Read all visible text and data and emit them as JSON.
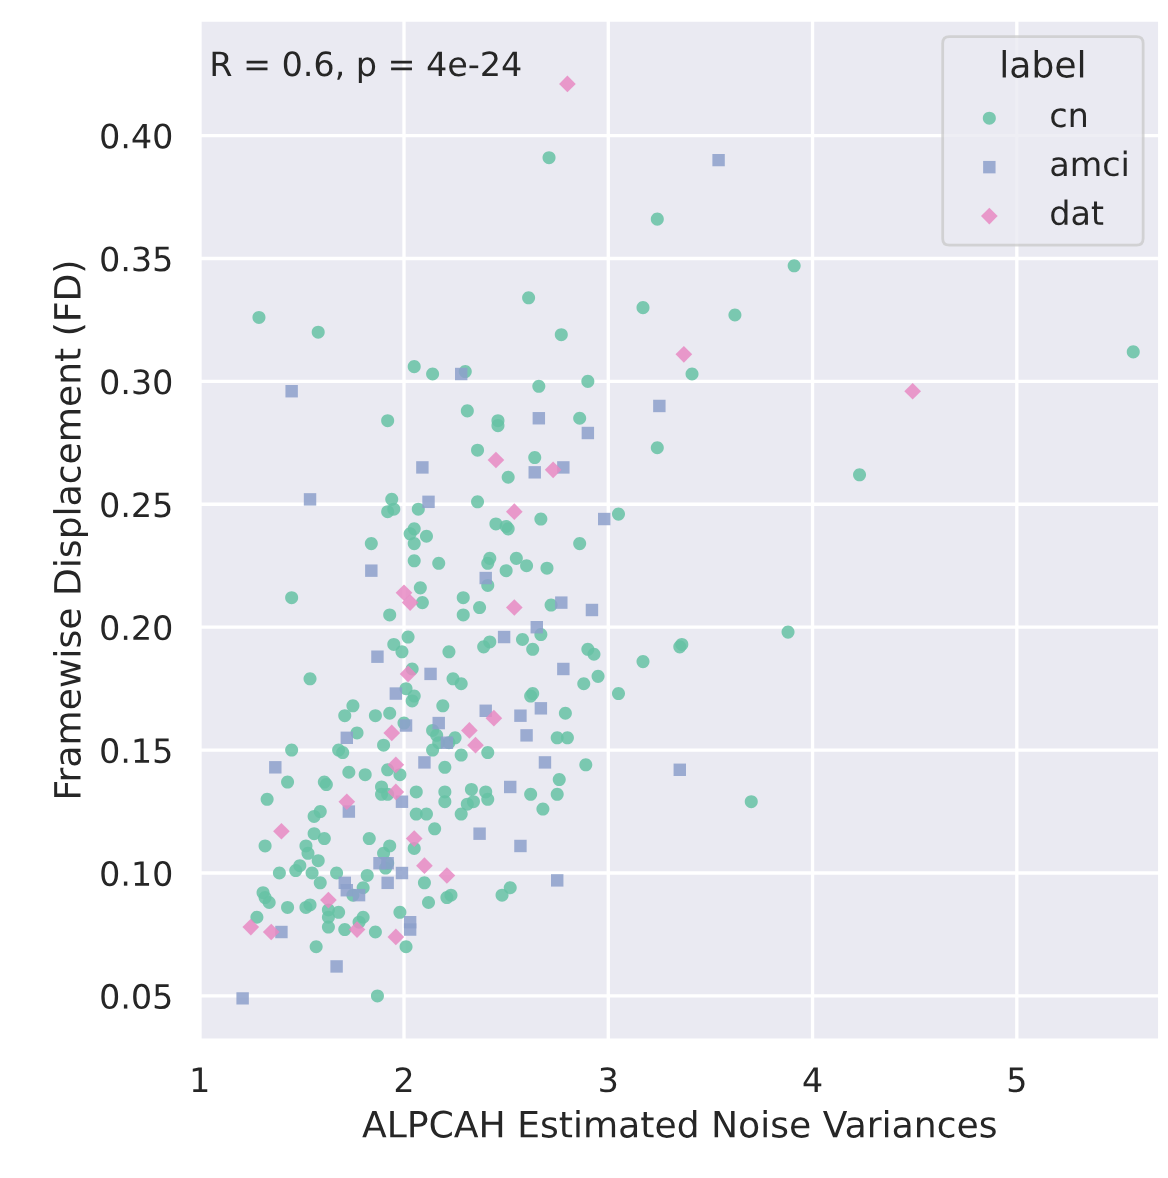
{
  "chart_data": {
    "type": "scatter",
    "xlabel": "ALPCAH Estimated Noise Variances",
    "ylabel": "Framewise Displacement (FD)",
    "annotations": [
      "R = 0.6, p = 4e-24"
    ],
    "legend_title": "label",
    "legend": "top right",
    "grid": true,
    "xlim": [
      1.0,
      5.7
    ],
    "ylim": [
      0.032,
      0.447
    ],
    "xticks": [
      1,
      2,
      3,
      4,
      5
    ],
    "yticks": [
      0.05,
      {
        "value": 0.1,
        "label": "0.10"
      },
      0.15,
      {
        "value": 0.2,
        "label": "0.20"
      },
      0.25,
      {
        "value": 0.3,
        "label": "0.30"
      },
      0.35,
      {
        "value": 0.4,
        "label": "0.40"
      }
    ],
    "series": [
      {
        "name": "cn",
        "color": "#66c2a5",
        "marker": "circle",
        "x": [
          2.71,
          3.24,
          3.91,
          1.29,
          1.58,
          2.61,
          3.62,
          3.17,
          2.77,
          2.05,
          2.14,
          2.3,
          2.66,
          2.9,
          1.92,
          2.31,
          2.46,
          2.46,
          2.86,
          3.41,
          3.24,
          2.36,
          2.64,
          2.51,
          1.94,
          1.92,
          1.95,
          2.07,
          2.36,
          3.05,
          2.67,
          2.45,
          2.5,
          2.05,
          5.57,
          4.23,
          3.36,
          3.88,
          3.7,
          1.84,
          2.03,
          2.05,
          2.11,
          2.05,
          2.17,
          2.51,
          2.41,
          2.42,
          2.55,
          2.5,
          2.6,
          2.7,
          2.86,
          1.45,
          1.93,
          2.09,
          2.08,
          2.29,
          2.29,
          2.37,
          2.41,
          2.72,
          2.02,
          1.95,
          1.99,
          2.22,
          2.39,
          2.42,
          2.58,
          2.63,
          2.67,
          2.9,
          2.93,
          3.17,
          3.35,
          1.54,
          2.04,
          2.01,
          2.05,
          2.04,
          2.24,
          2.28,
          2.62,
          2.63,
          2.88,
          2.95,
          3.05,
          1.75,
          1.71,
          1.86,
          1.93,
          2.0,
          1.77,
          2.19,
          2.14,
          2.16,
          2.25,
          2.17,
          2.22,
          2.14,
          2.28,
          2.41,
          2.79,
          2.75,
          2.8,
          2.89,
          1.45,
          1.68,
          1.7,
          1.9,
          1.73,
          1.81,
          1.92,
          1.98,
          2.2,
          1.43,
          1.61,
          1.62,
          1.33,
          1.89,
          1.89,
          1.92,
          2.06,
          2.2,
          2.2,
          2.33,
          2.4,
          2.41,
          2.31,
          2.34,
          2.62,
          2.75,
          2.68,
          2.76,
          1.56,
          1.59,
          1.32,
          1.56,
          1.61,
          1.83,
          2.06,
          2.11,
          2.28,
          2.15,
          2.05,
          1.93,
          1.9,
          1.52,
          1.53,
          1.49,
          1.58,
          1.47,
          1.39,
          1.55,
          1.59,
          1.67,
          1.82,
          1.92,
          1.91,
          2.1,
          1.8,
          1.75,
          1.31,
          1.32,
          1.34,
          1.43,
          1.52,
          1.54,
          1.63,
          1.68,
          1.63,
          1.8,
          1.98,
          2.12,
          2.21,
          2.23,
          2.48,
          2.52,
          1.28,
          1.63,
          1.71,
          1.78,
          1.86,
          1.57,
          2.01,
          1.87
        ],
        "values": [
          0.391,
          0.366,
          0.347,
          0.326,
          0.32,
          0.334,
          0.327,
          0.33,
          0.319,
          0.306,
          0.303,
          0.304,
          0.298,
          0.3,
          0.284,
          0.288,
          0.284,
          0.282,
          0.285,
          0.303,
          0.273,
          0.272,
          0.269,
          0.261,
          0.252,
          0.247,
          0.248,
          0.248,
          0.251,
          0.246,
          0.244,
          0.242,
          0.241,
          0.24,
          0.312,
          0.262,
          0.193,
          0.198,
          0.129,
          0.234,
          0.238,
          0.234,
          0.237,
          0.227,
          0.226,
          0.24,
          0.226,
          0.228,
          0.228,
          0.223,
          0.225,
          0.224,
          0.234,
          0.212,
          0.205,
          0.21,
          0.216,
          0.212,
          0.205,
          0.208,
          0.217,
          0.209,
          0.196,
          0.193,
          0.19,
          0.19,
          0.192,
          0.194,
          0.195,
          0.191,
          0.197,
          0.191,
          0.189,
          0.186,
          0.192,
          0.179,
          0.183,
          0.175,
          0.172,
          0.17,
          0.179,
          0.177,
          0.172,
          0.173,
          0.177,
          0.18,
          0.173,
          0.168,
          0.164,
          0.164,
          0.165,
          0.161,
          0.157,
          0.168,
          0.158,
          0.156,
          0.155,
          0.153,
          0.153,
          0.15,
          0.148,
          0.149,
          0.165,
          0.155,
          0.155,
          0.144,
          0.15,
          0.15,
          0.149,
          0.152,
          0.141,
          0.14,
          0.142,
          0.14,
          0.143,
          0.137,
          0.137,
          0.136,
          0.13,
          0.135,
          0.132,
          0.132,
          0.133,
          0.133,
          0.129,
          0.134,
          0.133,
          0.13,
          0.128,
          0.129,
          0.132,
          0.132,
          0.126,
          0.138,
          0.123,
          0.125,
          0.111,
          0.116,
          0.114,
          0.114,
          0.124,
          0.124,
          0.124,
          0.118,
          0.11,
          0.111,
          0.108,
          0.111,
          0.108,
          0.103,
          0.105,
          0.101,
          0.1,
          0.1,
          0.096,
          0.1,
          0.099,
          0.104,
          0.102,
          0.096,
          0.094,
          0.091,
          0.092,
          0.09,
          0.088,
          0.086,
          0.086,
          0.087,
          0.085,
          0.084,
          0.082,
          0.082,
          0.084,
          0.088,
          0.09,
          0.091,
          0.091,
          0.094,
          0.082,
          0.078,
          0.077,
          0.08,
          0.076,
          0.07,
          0.07,
          0.05
        ]
      },
      {
        "name": "amci",
        "color": "#8da0cb",
        "marker": "square",
        "x": [
          1.45,
          2.28,
          2.66,
          2.9,
          3.25,
          2.09,
          2.64,
          2.78,
          1.54,
          2.12,
          2.98,
          3.54,
          3.35,
          1.84,
          2.4,
          2.77,
          2.92,
          2.49,
          2.65,
          1.87,
          2.78,
          2.13,
          1.96,
          2.4,
          2.57,
          2.67,
          2.17,
          2.01,
          1.72,
          2.21,
          2.6,
          1.37,
          2.1,
          2.69,
          2.52,
          1.99,
          1.73,
          2.37,
          2.57,
          1.88,
          1.92,
          1.99,
          1.71,
          1.72,
          1.78,
          1.92,
          2.75,
          2.03,
          2.03,
          1.4,
          1.67,
          1.21
        ],
        "values": [
          0.296,
          0.303,
          0.285,
          0.279,
          0.29,
          0.265,
          0.263,
          0.265,
          0.252,
          0.251,
          0.244,
          0.39,
          0.142,
          0.223,
          0.22,
          0.21,
          0.207,
          0.196,
          0.2,
          0.188,
          0.183,
          0.181,
          0.173,
          0.166,
          0.164,
          0.167,
          0.161,
          0.16,
          0.155,
          0.153,
          0.156,
          0.143,
          0.145,
          0.145,
          0.135,
          0.129,
          0.125,
          0.116,
          0.111,
          0.104,
          0.104,
          0.1,
          0.096,
          0.093,
          0.091,
          0.096,
          0.097,
          0.08,
          0.077,
          0.076,
          0.062,
          0.049
        ]
      },
      {
        "name": "dat",
        "color": "#e78ac3",
        "marker": "diamond",
        "x": [
          2.8,
          2.45,
          2.73,
          2.54,
          3.37,
          4.49,
          2.0,
          2.03,
          2.54,
          2.02,
          1.94,
          2.32,
          2.35,
          2.44,
          1.96,
          1.96,
          1.72,
          1.4,
          2.05,
          2.1,
          2.21,
          1.63,
          1.25,
          1.35,
          1.77,
          1.96
        ],
        "values": [
          0.421,
          0.268,
          0.264,
          0.247,
          0.311,
          0.296,
          0.214,
          0.21,
          0.208,
          0.181,
          0.157,
          0.158,
          0.152,
          0.163,
          0.144,
          0.133,
          0.129,
          0.117,
          0.114,
          0.103,
          0.099,
          0.089,
          0.078,
          0.076,
          0.077,
          0.074
        ]
      }
    ]
  }
}
